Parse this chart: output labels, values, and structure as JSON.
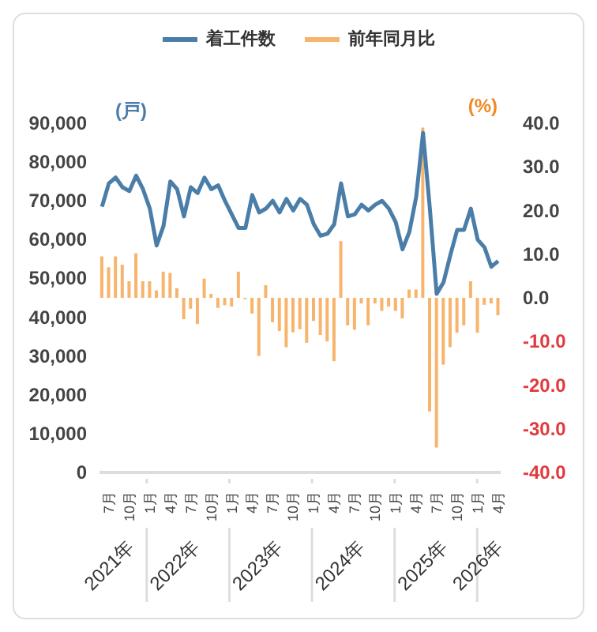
{
  "chart_data": {
    "type": "bar",
    "ylabel": "(戸)",
    "y2label": "(%)",
    "x": [
      "2021-06",
      "2021-07",
      "2021-08",
      "2021-09",
      "2021-10",
      "2021-11",
      "2021-12",
      "2022-01",
      "2022-02",
      "2022-03",
      "2022-04",
      "2022-05",
      "2022-06",
      "2022-07",
      "2022-08",
      "2022-09",
      "2022-10",
      "2022-11",
      "2022-12",
      "2023-01",
      "2023-02",
      "2023-03",
      "2023-04",
      "2023-05",
      "2023-06",
      "2023-07",
      "2023-08",
      "2023-09",
      "2023-10",
      "2023-11",
      "2023-12",
      "2024-01",
      "2024-02",
      "2024-03",
      "2024-04",
      "2024-05",
      "2024-06",
      "2024-07",
      "2024-08",
      "2024-09",
      "2024-10",
      "2024-11",
      "2024-12",
      "2025-01",
      "2025-02",
      "2025-03",
      "2025-04",
      "2025-05",
      "2025-06",
      "2025-07",
      "2025-08",
      "2025-09",
      "2025-10",
      "2025-11",
      "2025-12",
      "2026-01",
      "2026-02",
      "2026-03",
      "2026-04"
    ],
    "series": [
      {
        "name": "着工件数",
        "type": "line",
        "color": "#4a7ea8",
        "values": [
          68500,
          74500,
          76000,
          73500,
          72500,
          76500,
          73000,
          68000,
          58500,
          63500,
          75000,
          73000,
          66000,
          73500,
          72000,
          76000,
          73000,
          74000,
          70000,
          66500,
          63000,
          63000,
          71500,
          67000,
          68000,
          70000,
          67000,
          70500,
          67500,
          70500,
          69000,
          64000,
          61000,
          61500,
          64000,
          74500,
          66000,
          66500,
          69000,
          67500,
          69000,
          70000,
          68000,
          64500,
          57500,
          62000,
          71000,
          87500,
          68000,
          46000,
          49000,
          56000,
          62500,
          62500,
          68000,
          60000,
          58000,
          53000,
          54500
        ]
      },
      {
        "name": "前年同月比",
        "type": "bar",
        "axis": "y2",
        "color": "#f7b46c",
        "values": [
          9.5,
          7,
          9.5,
          7.6,
          3.8,
          10.2,
          3.8,
          3.8,
          1.7,
          6,
          5.7,
          2.2,
          -4.9,
          -2.5,
          -6,
          4.4,
          0.9,
          -2.3,
          -1.7,
          -2,
          6,
          -0.3,
          -3.6,
          -13.3,
          2.9,
          -5.6,
          -7.6,
          -11.3,
          -7.9,
          -7.2,
          -10.3,
          -5.3,
          -8.5,
          -10,
          -14.5,
          13,
          -6.3,
          -7.3,
          -1.3,
          -6.3,
          -1.3,
          -3,
          -2,
          -3,
          -4.7,
          1.9,
          1.9,
          39,
          -26,
          -34.3,
          -15.3,
          -11.3,
          -8,
          -6.3,
          3.8,
          -8,
          -1.6,
          -1.3,
          -4
        ]
      }
    ],
    "xlim": [
      "2021-05-20",
      "2026-04-12"
    ],
    "xticks": [
      {
        "value": "2021-07",
        "label": "7月"
      },
      {
        "value": "2021-10",
        "label": "10月"
      },
      {
        "value": "2022-01",
        "label": "1月"
      },
      {
        "value": "2022-04",
        "label": "4月"
      },
      {
        "value": "2022-07",
        "label": "7月"
      },
      {
        "value": "2022-10",
        "label": "10月"
      },
      {
        "value": "2023-01",
        "label": "1月"
      },
      {
        "value": "2023-04",
        "label": "4月"
      },
      {
        "value": "2023-07",
        "label": "7月"
      },
      {
        "value": "2023-10",
        "label": "10月"
      },
      {
        "value": "2024-01",
        "label": "1月"
      },
      {
        "value": "2024-04",
        "label": "4月"
      },
      {
        "value": "2024-07",
        "label": "7月"
      },
      {
        "value": "2024-10",
        "label": "10月"
      },
      {
        "value": "2025-01",
        "label": "1月"
      },
      {
        "value": "2025-04",
        "label": "4月"
      },
      {
        "value": "2025-07",
        "label": "7月"
      },
      {
        "value": "2025-10",
        "label": "10月"
      },
      {
        "value": "2026-01",
        "label": "1月"
      },
      {
        "value": "2026-04",
        "label": "4月"
      }
    ],
    "ylim": [
      0,
      90000
    ],
    "yticks": [
      {
        "value": 0,
        "label": "0"
      },
      {
        "value": 10000,
        "label": "10,000"
      },
      {
        "value": 20000,
        "label": "20,000"
      },
      {
        "value": 30000,
        "label": "30,000"
      },
      {
        "value": 40000,
        "label": "40,000"
      },
      {
        "value": 50000,
        "label": "50,000"
      },
      {
        "value": 60000,
        "label": "60,000"
      },
      {
        "value": 70000,
        "label": "70,000"
      },
      {
        "value": 80000,
        "label": "80,000"
      },
      {
        "value": 90000,
        "label": "90,000"
      }
    ],
    "y2lim": [
      -40,
      40
    ],
    "y2ticks": [
      {
        "value": -40,
        "label": "-40.0"
      },
      {
        "value": -30,
        "label": "-30.0"
      },
      {
        "value": -20,
        "label": "-20.0"
      },
      {
        "value": -10,
        "label": "-10.0"
      },
      {
        "value": 0,
        "label": "0.0"
      },
      {
        "value": 10,
        "label": "10.0"
      },
      {
        "value": 20,
        "label": "20.0"
      },
      {
        "value": 30,
        "label": "30.0"
      },
      {
        "value": 40,
        "label": "40.0"
      }
    ],
    "annotations": [
      "2021年",
      "2022年",
      "2023年",
      "2024年",
      "2025年",
      "2026年"
    ],
    "legend": "top"
  }
}
